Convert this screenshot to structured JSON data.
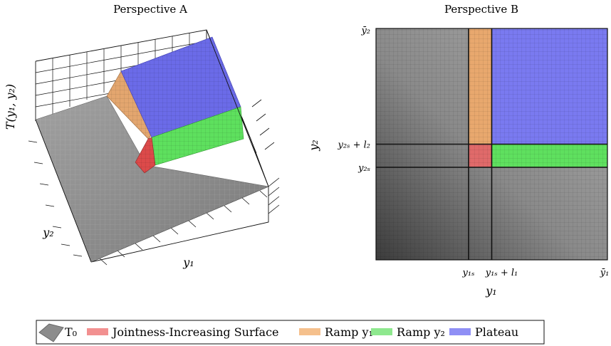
{
  "chart_data": [
    {
      "type": "surface3d",
      "title": "Perspective A",
      "xlabel": "y_1",
      "ylabel": "y_2",
      "zlabel": "T(y_1, y_2)",
      "grid": true,
      "regions": [
        {
          "name": "T_0",
          "color": "#8c8c8c"
        },
        {
          "name": "Jointness-Increasing Surface",
          "color": "#e05a5a"
        },
        {
          "name": "Ramp y_1",
          "color": "#e8a56a"
        },
        {
          "name": "Ramp y_2",
          "color": "#55dd55"
        },
        {
          "name": "Plateau",
          "color": "#6b6be6"
        }
      ]
    },
    {
      "type": "heatmap",
      "title": "Perspective B",
      "xlabel": "y_1",
      "ylabel": "y_2",
      "x_ticks": [
        {
          "label": "y_{1s}",
          "value": 0.4
        },
        {
          "label": "y_{1s} + l_1",
          "value": 0.5
        },
        {
          "label": "ȳ_1",
          "value": 1.0
        }
      ],
      "y_ticks": [
        {
          "label": "ȳ_2",
          "value": 1.0
        },
        {
          "label": "y_{2s} + l_2",
          "value": 0.5
        },
        {
          "label": "y_{2s}",
          "value": 0.4
        }
      ],
      "xlim": [
        0,
        1
      ],
      "ylim": [
        0,
        1
      ],
      "regions": [
        {
          "name": "Jointness-Increasing Surface",
          "x": [
            0.4,
            0.5
          ],
          "y": [
            0.4,
            0.5
          ]
        },
        {
          "name": "Ramp y_1",
          "x": [
            0.4,
            0.5
          ],
          "y": [
            0.5,
            1.0
          ]
        },
        {
          "name": "Ramp y_2",
          "x": [
            0.5,
            1.0
          ],
          "y": [
            0.4,
            0.5
          ]
        },
        {
          "name": "Plateau",
          "x": [
            0.5,
            1.0
          ],
          "y": [
            0.5,
            1.0
          ]
        }
      ]
    }
  ],
  "legend": {
    "placement": "bottom",
    "entries": [
      {
        "label": "T₀",
        "color": "#8c8c8c"
      },
      {
        "label": "Jointness-Increasing Surface",
        "color": "#f29090"
      },
      {
        "label": "Ramp y₁",
        "color": "#f5c08c"
      },
      {
        "label": "Ramp y₂",
        "color": "#8ee88e"
      },
      {
        "label": "Plateau",
        "color": "#8f8ff5"
      }
    ]
  },
  "labels": {
    "titleA": "Perspective A",
    "titleB": "Perspective B",
    "zlabelA": "T(y₁, y₂)",
    "xlabelA": "y₁",
    "ylabelA": "y₂",
    "xlabelB": "y₁",
    "ylabelB": "y₂",
    "xtickB1": "y₁ₛ",
    "xtickB2": "y₁ₛ + l₁",
    "xtickB3": "ȳ₁",
    "ytickB1": "ȳ₂",
    "ytickB2": "y₂ₛ + l₂",
    "ytickB3": "y₂ₛ"
  }
}
